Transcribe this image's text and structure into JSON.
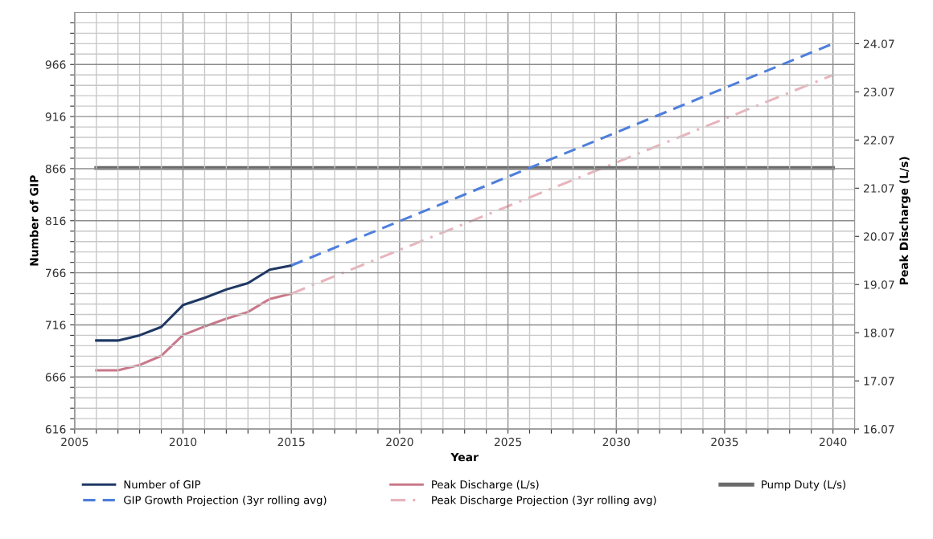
{
  "chart_data": {
    "type": "line",
    "xlabel": "Year",
    "ylabel": "Number of GIP",
    "y2label": "Peak Discharge (L/s)",
    "xlim": [
      2005,
      2041
    ],
    "ylim": [
      616,
      1016
    ],
    "y2lim": [
      16.07,
      24.72
    ],
    "xticks": [
      2005,
      {
        "value": 2006,
        "label": null
      },
      {
        "value": 2007,
        "label": null
      },
      {
        "value": 2008,
        "label": null
      },
      {
        "value": 2009,
        "label": null
      },
      2010,
      {
        "value": 2011,
        "label": null
      },
      {
        "value": 2012,
        "label": null
      },
      {
        "value": 2013,
        "label": null
      },
      {
        "value": 2014,
        "label": null
      },
      2015,
      {
        "value": 2016,
        "label": null
      },
      {
        "value": 2017,
        "label": null
      },
      {
        "value": 2018,
        "label": null
      },
      {
        "value": 2019,
        "label": null
      },
      2020,
      {
        "value": 2021,
        "label": null
      },
      {
        "value": 2022,
        "label": null
      },
      {
        "value": 2023,
        "label": null
      },
      {
        "value": 2024,
        "label": null
      },
      2025,
      {
        "value": 2026,
        "label": null
      },
      {
        "value": 2027,
        "label": null
      },
      {
        "value": 2028,
        "label": null
      },
      {
        "value": 2029,
        "label": null
      },
      2030,
      {
        "value": 2031,
        "label": null
      },
      {
        "value": 2032,
        "label": null
      },
      {
        "value": 2033,
        "label": null
      },
      {
        "value": 2034,
        "label": null
      },
      2035,
      {
        "value": 2036,
        "label": null
      },
      {
        "value": 2037,
        "label": null
      },
      {
        "value": 2038,
        "label": null
      },
      {
        "value": 2039,
        "label": null
      },
      2040,
      {
        "value": 2041,
        "label": null
      }
    ],
    "yticks": [
      616,
      {
        "value": 626,
        "label": null
      },
      {
        "value": 636,
        "label": null
      },
      {
        "value": 646,
        "label": null
      },
      {
        "value": 656,
        "label": null
      },
      666,
      {
        "value": 676,
        "label": null
      },
      {
        "value": 686,
        "label": null
      },
      {
        "value": 696,
        "label": null
      },
      {
        "value": 706,
        "label": null
      },
      716,
      {
        "value": 726,
        "label": null
      },
      {
        "value": 736,
        "label": null
      },
      {
        "value": 746,
        "label": null
      },
      {
        "value": 756,
        "label": null
      },
      766,
      {
        "value": 776,
        "label": null
      },
      {
        "value": 786,
        "label": null
      },
      {
        "value": 796,
        "label": null
      },
      {
        "value": 806,
        "label": null
      },
      816,
      {
        "value": 826,
        "label": null
      },
      {
        "value": 836,
        "label": null
      },
      {
        "value": 846,
        "label": null
      },
      {
        "value": 856,
        "label": null
      },
      866,
      {
        "value": 876,
        "label": null
      },
      {
        "value": 886,
        "label": null
      },
      {
        "value": 896,
        "label": null
      },
      {
        "value": 906,
        "label": null
      },
      916,
      {
        "value": 926,
        "label": null
      },
      {
        "value": 936,
        "label": null
      },
      {
        "value": 946,
        "label": null
      },
      {
        "value": 956,
        "label": null
      },
      966,
      {
        "value": 976,
        "label": null
      },
      {
        "value": 986,
        "label": null
      },
      {
        "value": 996,
        "label": null
      },
      {
        "value": 1006,
        "label": null
      }
    ],
    "y2ticks": [
      16.07,
      17.07,
      18.07,
      19.07,
      20.07,
      21.07,
      22.07,
      23.07,
      24.07
    ],
    "grid": true,
    "legend": "bottom",
    "series": [
      {
        "name": "Number of GIP",
        "color": "#1f3864",
        "line_style": "solid",
        "x": [
          2006,
          2007,
          2008,
          2009,
          2010,
          2011,
          2012,
          2013,
          2014,
          2015
        ],
        "values": [
          701,
          701,
          706,
          714,
          735,
          742,
          750,
          756,
          769,
          773
        ]
      },
      {
        "name": "GIP Growth Projection (3yr rolling avg)",
        "color": "#4f7fdc",
        "line_style": "dashed",
        "x": [
          2015,
          2040
        ],
        "values": [
          773,
          986
        ]
      },
      {
        "name": "Peak Discharge (L/s)",
        "color": "#c9788a",
        "line_style": "solid",
        "axis": "y2",
        "x": [
          2006,
          2007,
          2008,
          2009,
          2010,
          2011,
          2012,
          2013,
          2014,
          2015
        ],
        "values": [
          17.29,
          17.29,
          17.4,
          17.59,
          18.02,
          18.2,
          18.36,
          18.5,
          18.77,
          18.88
        ]
      },
      {
        "name": "Peak Discharge Projection (3yr rolling avg)",
        "color": "#e8b4bc",
        "line_style": "dashdot",
        "axis": "y2",
        "x": [
          2015,
          2040
        ],
        "values": [
          18.88,
          23.42
        ]
      },
      {
        "name": "Pump Duty (L/s)",
        "color": "#6b6b6b",
        "line_style": "solid",
        "axis": "y2",
        "x": [
          2006,
          2040
        ],
        "values": [
          21.49,
          21.49
        ]
      }
    ]
  }
}
